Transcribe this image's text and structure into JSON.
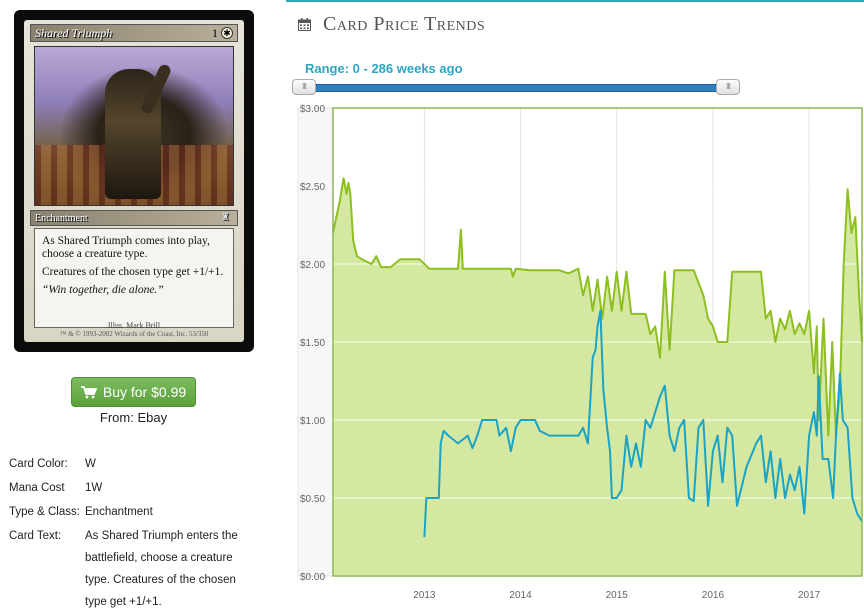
{
  "card": {
    "name": "Shared Triumph",
    "cost_number": "1",
    "cost_symbol": "✱",
    "type_line": "Enchantment",
    "rules_text_1": "As Shared Triumph comes into play, choose a creature type.",
    "rules_text_2": "Creatures of the chosen type get +1/+1.",
    "flavor_text": "“Win together, die alone.”",
    "illustrator": "Illus. Mark Brill",
    "copyright": "™ & © 1993-2002 Wizards of the Coast, Inc. 53/350"
  },
  "buy": {
    "label": "Buy for $0.99",
    "from": "From: Ebay",
    "button_color": "#6aad4b"
  },
  "details": {
    "color_key": "Card Color:",
    "color_val": "W",
    "cost_key": "Mana Cost",
    "cost_val": "1W",
    "type_key": "Type & Class:",
    "type_val": "Enchantment",
    "text_key": "Card Text:",
    "text_val": "As Shared Triumph enters the battlefield, choose a creature type. Creatures of the chosen type get +1/+1."
  },
  "trends": {
    "title": "Card Price Trends",
    "range_label": "Range: 0 - 286 weeks ago",
    "accent_color": "#2eaab8"
  },
  "chart_data": {
    "type": "line",
    "title": "",
    "xlabel": "",
    "ylabel": "",
    "y_ticks": [
      "$0.00",
      "$0.50",
      "$1.00",
      "$1.50",
      "$2.00",
      "$2.50",
      "$3.00"
    ],
    "x_ticks": [
      "2013",
      "2014",
      "2015",
      "2016",
      "2017"
    ],
    "ylim": [
      0,
      3
    ],
    "xlim": [
      2012.05,
      2017.55
    ],
    "grid": true,
    "series": [
      {
        "color": "#8cbf1f",
        "fill": "#d4e8a2",
        "points": [
          [
            2012.05,
            2.2
          ],
          [
            2012.12,
            2.4
          ],
          [
            2012.16,
            2.55
          ],
          [
            2012.19,
            2.45
          ],
          [
            2012.21,
            2.52
          ],
          [
            2012.23,
            2.45
          ],
          [
            2012.26,
            2.15
          ],
          [
            2012.3,
            2.05
          ],
          [
            2012.35,
            2.03
          ],
          [
            2012.45,
            2.0
          ],
          [
            2012.5,
            2.05
          ],
          [
            2012.55,
            1.98
          ],
          [
            2012.65,
            1.98
          ],
          [
            2012.75,
            2.03
          ],
          [
            2012.95,
            2.03
          ],
          [
            2013.05,
            1.97
          ],
          [
            2013.35,
            1.97
          ],
          [
            2013.38,
            2.22
          ],
          [
            2013.4,
            1.97
          ],
          [
            2013.9,
            1.97
          ],
          [
            2013.92,
            1.92
          ],
          [
            2013.95,
            1.97
          ],
          [
            2014.1,
            1.96
          ],
          [
            2014.4,
            1.96
          ],
          [
            2014.5,
            1.94
          ],
          [
            2014.6,
            1.97
          ],
          [
            2014.65,
            1.8
          ],
          [
            2014.7,
            1.92
          ],
          [
            2014.75,
            1.7
          ],
          [
            2014.8,
            1.9
          ],
          [
            2014.85,
            1.65
          ],
          [
            2014.9,
            1.92
          ],
          [
            2014.95,
            1.7
          ],
          [
            2015.0,
            1.95
          ],
          [
            2015.05,
            1.7
          ],
          [
            2015.1,
            1.95
          ],
          [
            2015.15,
            1.68
          ],
          [
            2015.3,
            1.68
          ],
          [
            2015.35,
            1.55
          ],
          [
            2015.4,
            1.6
          ],
          [
            2015.45,
            1.4
          ],
          [
            2015.5,
            1.95
          ],
          [
            2015.55,
            1.45
          ],
          [
            2015.6,
            1.96
          ],
          [
            2015.8,
            1.96
          ],
          [
            2015.9,
            1.8
          ],
          [
            2015.95,
            1.65
          ],
          [
            2016.0,
            1.6
          ],
          [
            2016.05,
            1.5
          ],
          [
            2016.15,
            1.5
          ],
          [
            2016.2,
            1.95
          ],
          [
            2016.5,
            1.95
          ],
          [
            2016.55,
            1.65
          ],
          [
            2016.6,
            1.7
          ],
          [
            2016.65,
            1.5
          ],
          [
            2016.7,
            1.65
          ],
          [
            2016.75,
            1.58
          ],
          [
            2016.8,
            1.7
          ],
          [
            2016.85,
            1.55
          ],
          [
            2016.9,
            1.62
          ],
          [
            2016.95,
            1.55
          ],
          [
            2017.0,
            1.7
          ],
          [
            2017.05,
            1.3
          ],
          [
            2017.08,
            1.6
          ],
          [
            2017.1,
            1.0
          ],
          [
            2017.15,
            1.65
          ],
          [
            2017.2,
            0.9
          ],
          [
            2017.24,
            1.5
          ],
          [
            2017.28,
            0.9
          ],
          [
            2017.32,
            1.2
          ],
          [
            2017.36,
            2.0
          ],
          [
            2017.4,
            2.48
          ],
          [
            2017.44,
            2.2
          ],
          [
            2017.48,
            2.3
          ],
          [
            2017.52,
            1.8
          ],
          [
            2017.55,
            1.5
          ]
        ]
      },
      {
        "color": "#1aa3c4",
        "points": [
          [
            2013.0,
            0.25
          ],
          [
            2013.02,
            0.5
          ],
          [
            2013.15,
            0.5
          ],
          [
            2013.17,
            0.85
          ],
          [
            2013.2,
            0.93
          ],
          [
            2013.25,
            0.9
          ],
          [
            2013.35,
            0.85
          ],
          [
            2013.45,
            0.9
          ],
          [
            2013.5,
            0.82
          ],
          [
            2013.55,
            0.9
          ],
          [
            2013.6,
            1.0
          ],
          [
            2013.75,
            1.0
          ],
          [
            2013.78,
            0.9
          ],
          [
            2013.85,
            0.95
          ],
          [
            2013.9,
            0.8
          ],
          [
            2013.95,
            0.95
          ],
          [
            2014.0,
            1.0
          ],
          [
            2014.15,
            1.0
          ],
          [
            2014.2,
            0.93
          ],
          [
            2014.3,
            0.9
          ],
          [
            2014.6,
            0.9
          ],
          [
            2014.65,
            0.95
          ],
          [
            2014.7,
            0.85
          ],
          [
            2014.75,
            1.4
          ],
          [
            2014.78,
            1.45
          ],
          [
            2014.8,
            1.6
          ],
          [
            2014.83,
            1.7
          ],
          [
            2014.86,
            1.2
          ],
          [
            2014.9,
            0.95
          ],
          [
            2014.93,
            0.8
          ],
          [
            2014.95,
            0.5
          ],
          [
            2015.0,
            0.5
          ],
          [
            2015.05,
            0.55
          ],
          [
            2015.1,
            0.9
          ],
          [
            2015.15,
            0.7
          ],
          [
            2015.2,
            0.85
          ],
          [
            2015.25,
            0.7
          ],
          [
            2015.3,
            1.0
          ],
          [
            2015.35,
            0.95
          ],
          [
            2015.4,
            1.05
          ],
          [
            2015.45,
            1.15
          ],
          [
            2015.5,
            1.22
          ],
          [
            2015.55,
            0.9
          ],
          [
            2015.6,
            0.8
          ],
          [
            2015.65,
            0.95
          ],
          [
            2015.7,
            1.0
          ],
          [
            2015.75,
            0.5
          ],
          [
            2015.8,
            0.48
          ],
          [
            2015.85,
            0.95
          ],
          [
            2015.9,
            1.0
          ],
          [
            2015.95,
            0.45
          ],
          [
            2016.0,
            0.8
          ],
          [
            2016.05,
            0.9
          ],
          [
            2016.1,
            0.6
          ],
          [
            2016.15,
            0.95
          ],
          [
            2016.2,
            0.9
          ],
          [
            2016.25,
            0.45
          ],
          [
            2016.35,
            0.7
          ],
          [
            2016.45,
            0.85
          ],
          [
            2016.5,
            0.9
          ],
          [
            2016.55,
            0.6
          ],
          [
            2016.6,
            0.8
          ],
          [
            2016.65,
            0.5
          ],
          [
            2016.7,
            0.75
          ],
          [
            2016.75,
            0.5
          ],
          [
            2016.8,
            0.65
          ],
          [
            2016.85,
            0.55
          ],
          [
            2016.9,
            0.7
          ],
          [
            2016.95,
            0.4
          ],
          [
            2017.0,
            0.9
          ],
          [
            2017.05,
            1.05
          ],
          [
            2017.08,
            0.9
          ],
          [
            2017.1,
            1.28
          ],
          [
            2017.14,
            0.75
          ],
          [
            2017.2,
            0.75
          ],
          [
            2017.25,
            0.5
          ],
          [
            2017.28,
            0.9
          ],
          [
            2017.32,
            1.3
          ],
          [
            2017.35,
            1.0
          ],
          [
            2017.4,
            0.95
          ],
          [
            2017.45,
            0.5
          ],
          [
            2017.5,
            0.4
          ],
          [
            2017.55,
            0.35
          ]
        ]
      }
    ]
  }
}
